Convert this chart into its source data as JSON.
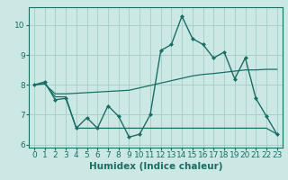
{
  "title": "",
  "xlabel": "Humidex (Indice chaleur)",
  "background_color": "#cce8e4",
  "grid_color": "#aacfcb",
  "line_color": "#1a6e64",
  "x_values": [
    0,
    1,
    2,
    3,
    4,
    5,
    6,
    7,
    8,
    9,
    10,
    11,
    12,
    13,
    14,
    15,
    16,
    17,
    18,
    19,
    20,
    21,
    22,
    23
  ],
  "line1_y": [
    8.0,
    8.1,
    7.5,
    7.55,
    6.55,
    6.9,
    6.55,
    7.3,
    6.95,
    6.25,
    6.35,
    7.0,
    9.15,
    9.35,
    10.3,
    9.55,
    9.35,
    8.9,
    9.1,
    8.2,
    8.9,
    7.55,
    6.95,
    6.35
  ],
  "line2_y": [
    8.0,
    8.05,
    7.6,
    7.6,
    6.55,
    6.55,
    6.55,
    6.55,
    6.55,
    6.55,
    6.55,
    6.55,
    6.55,
    6.55,
    6.55,
    6.55,
    6.55,
    6.55,
    6.55,
    6.55,
    6.55,
    6.55,
    6.55,
    6.35
  ],
  "line3_y": [
    8.0,
    8.03,
    7.7,
    7.7,
    7.72,
    7.74,
    7.76,
    7.78,
    7.8,
    7.82,
    7.9,
    7.98,
    8.06,
    8.14,
    8.22,
    8.3,
    8.35,
    8.38,
    8.42,
    8.46,
    8.5,
    8.5,
    8.52,
    8.52
  ],
  "ylim": [
    5.9,
    10.6
  ],
  "xlim": [
    -0.5,
    23.5
  ],
  "yticks": [
    6,
    7,
    8,
    9,
    10
  ],
  "xticks": [
    0,
    1,
    2,
    3,
    4,
    5,
    6,
    7,
    8,
    9,
    10,
    11,
    12,
    13,
    14,
    15,
    16,
    17,
    18,
    19,
    20,
    21,
    22,
    23
  ],
  "tick_fontsize": 6.5,
  "xlabel_fontsize": 7.5
}
